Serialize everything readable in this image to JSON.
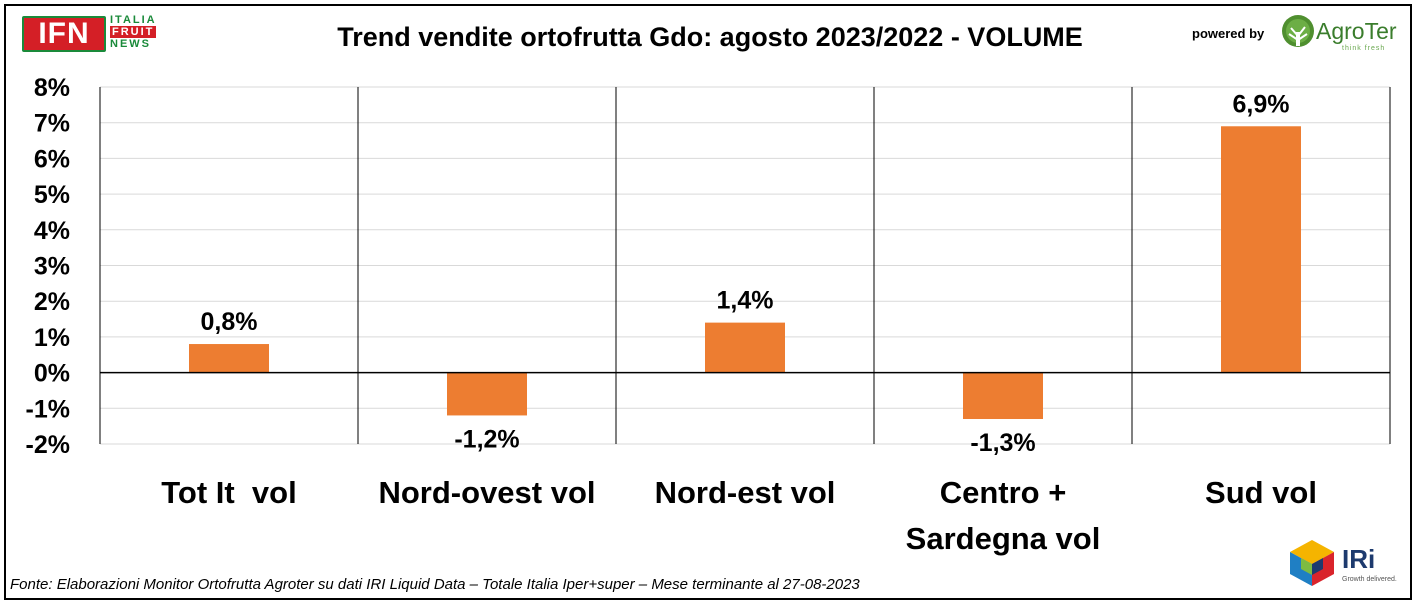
{
  "header": {
    "logo_left": {
      "letters": "IFN",
      "words": [
        "ITALIA",
        "FRUIT",
        "NEWS"
      ]
    },
    "title": "Trend vendite ortofrutta Gdo: agosto 2023/2022 - VOLUME",
    "powered_by": "powered by",
    "logo_right": {
      "name": "AgroTer",
      "tagline": "think fresh"
    }
  },
  "footer": {
    "source": "Fonte: Elaborazioni Monitor Ortofrutta Agroter su dati IRI Liquid Data – Totale Italia Iper+super – Mese terminante al 27-08-2023",
    "logo": {
      "name": "IRi",
      "tagline": "Growth delivered."
    }
  },
  "colors": {
    "bar": "#ed7d31",
    "grid": "#d9d9d9",
    "axis": "#000000",
    "ifn_red": "#d41f26",
    "ifn_green": "#1a8a3a"
  },
  "chart_data": {
    "type": "bar",
    "categories": [
      [
        "Tot It  vol"
      ],
      [
        "Nord-ovest vol"
      ],
      [
        "Nord-est vol"
      ],
      [
        "Centro +",
        "Sardegna vol"
      ],
      [
        "Sud vol"
      ]
    ],
    "values": [
      0.8,
      -1.2,
      1.4,
      -1.3,
      6.9
    ],
    "data_labels": [
      "0,8%",
      "-1,2%",
      "1,4%",
      "-1,3%",
      "6,9%"
    ],
    "yticks": [
      -2,
      -1,
      0,
      1,
      2,
      3,
      4,
      5,
      6,
      7,
      8
    ],
    "ytick_labels": [
      "-2%",
      "-1%",
      "0%",
      "1%",
      "2%",
      "3%",
      "4%",
      "5%",
      "6%",
      "7%",
      "8%"
    ],
    "ylim": [
      -2,
      8
    ],
    "grid": true,
    "legend": "none"
  }
}
